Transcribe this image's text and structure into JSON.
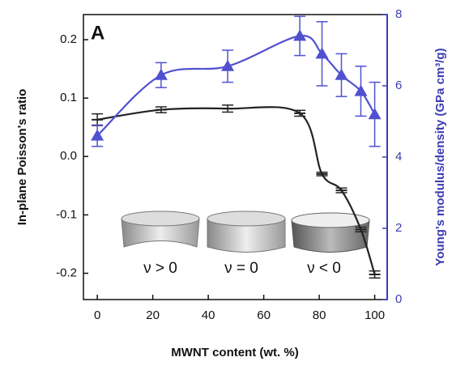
{
  "chart_data": {
    "type": "line",
    "panel_label": "A",
    "xlabel": "MWNT content (wt. %)",
    "ylabel": "In-plane Poisson's ratio",
    "y2label": "Young's modulus/density (GPa cm³/g)",
    "x": [
      0,
      23,
      47,
      73,
      81,
      88,
      95,
      100
    ],
    "xlim": [
      -5,
      104.5
    ],
    "xticks": [
      0,
      20,
      40,
      60,
      80,
      100
    ],
    "ylim": [
      -0.245,
      0.243
    ],
    "yticks": [
      {
        "value": -0.2,
        "label": "-0.2"
      },
      {
        "value": -0.1,
        "label": "-0.1"
      },
      {
        "value": 0,
        "label": "0.0"
      },
      0.1,
      0.2
    ],
    "y2lim": [
      0,
      8
    ],
    "y2ticks": [
      0,
      2,
      4,
      6,
      8
    ],
    "y2color": "#3c3cb4",
    "annotations": [
      "ν > 0",
      "ν = 0",
      "ν < 0"
    ],
    "series": [
      {
        "color": "#222222",
        "marker": "bar",
        "values": [
          0.063,
          0.08,
          0.082,
          0.074,
          -0.03,
          -0.058,
          -0.125,
          -0.202
        ],
        "errors": [
          0.01,
          0.005,
          0.006,
          0.005,
          0.003,
          0.004,
          0.004,
          0.006
        ]
      },
      {
        "color": "#5050d0",
        "marker": "triangle",
        "axis": "y2",
        "values": [
          4.6,
          6.3,
          6.55,
          7.4,
          6.9,
          6.3,
          5.85,
          5.2
        ],
        "errors": [
          0.3,
          0.35,
          0.45,
          0.55,
          0.9,
          0.6,
          0.7,
          0.9
        ]
      }
    ]
  }
}
